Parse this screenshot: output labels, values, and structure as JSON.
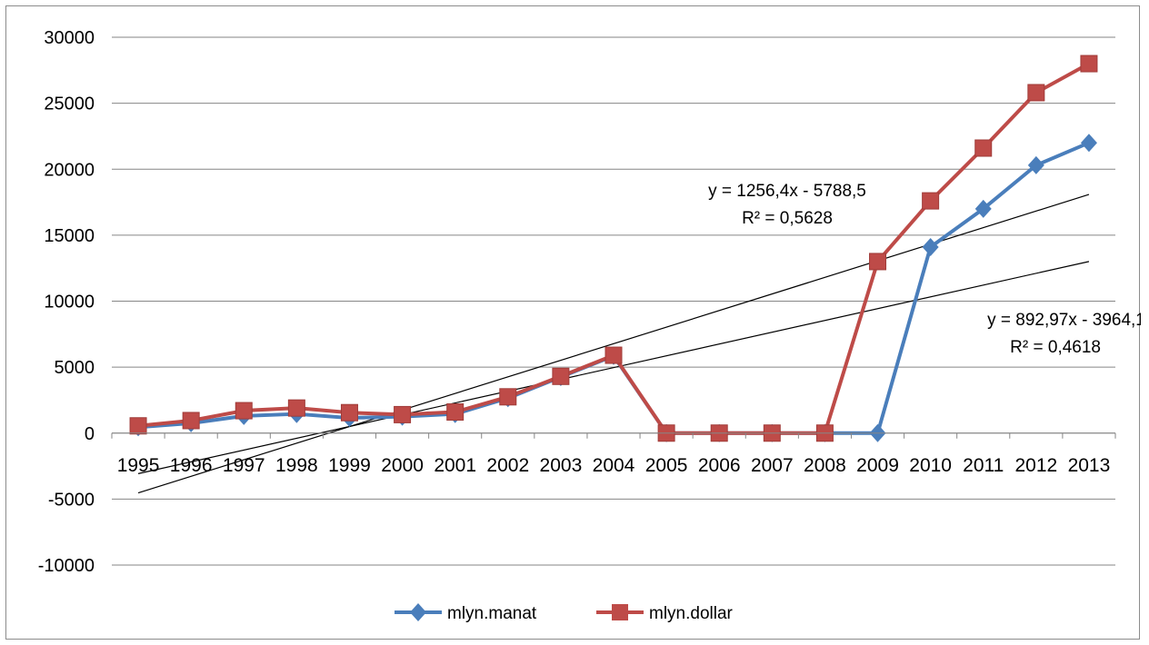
{
  "chart_data": {
    "type": "line",
    "categories": [
      "1995",
      "1996",
      "1997",
      "1998",
      "1999",
      "2000",
      "2001",
      "2002",
      "2003",
      "2004",
      "2005",
      "2006",
      "2007",
      "2008",
      "2009",
      "2010",
      "2011",
      "2012",
      "2013"
    ],
    "ylim": [
      -10000,
      30000
    ],
    "yticks": [
      -10000,
      -5000,
      0,
      5000,
      10000,
      15000,
      20000,
      25000,
      30000
    ],
    "ytick_labels": [
      "-10000",
      "-5000",
      "0",
      "5000",
      "10000",
      "15000",
      "20000",
      "25000",
      "30000"
    ],
    "grid": true,
    "legend_position": "bottom",
    "series": [
      {
        "name": "mlyn.manat",
        "color": "#4a7ebb",
        "marker": "diamond",
        "values": [
          450,
          750,
          1300,
          1450,
          1150,
          1250,
          1450,
          2650,
          4250,
          5850,
          0,
          0,
          0,
          0,
          0,
          14100,
          17000,
          20300,
          22000
        ]
      },
      {
        "name": "mlyn.dollar",
        "color": "#be4b48",
        "marker": "square",
        "values": [
          550,
          950,
          1700,
          1900,
          1550,
          1400,
          1600,
          2750,
          4300,
          5900,
          0,
          0,
          0,
          0,
          13000,
          17600,
          21600,
          25800,
          28000
        ]
      }
    ],
    "trendlines": [
      {
        "color": "#000000",
        "equation": "y = 1256,4x - 5788,5",
        "r2": "R² = 0,5628",
        "slope": 1256.4,
        "intercept": -5788.5
      },
      {
        "color": "#000000",
        "equation": "y = 892,97x - 3964,1",
        "r2": "R² = 0,4618",
        "slope": 892.97,
        "intercept": -3964.1
      }
    ]
  }
}
